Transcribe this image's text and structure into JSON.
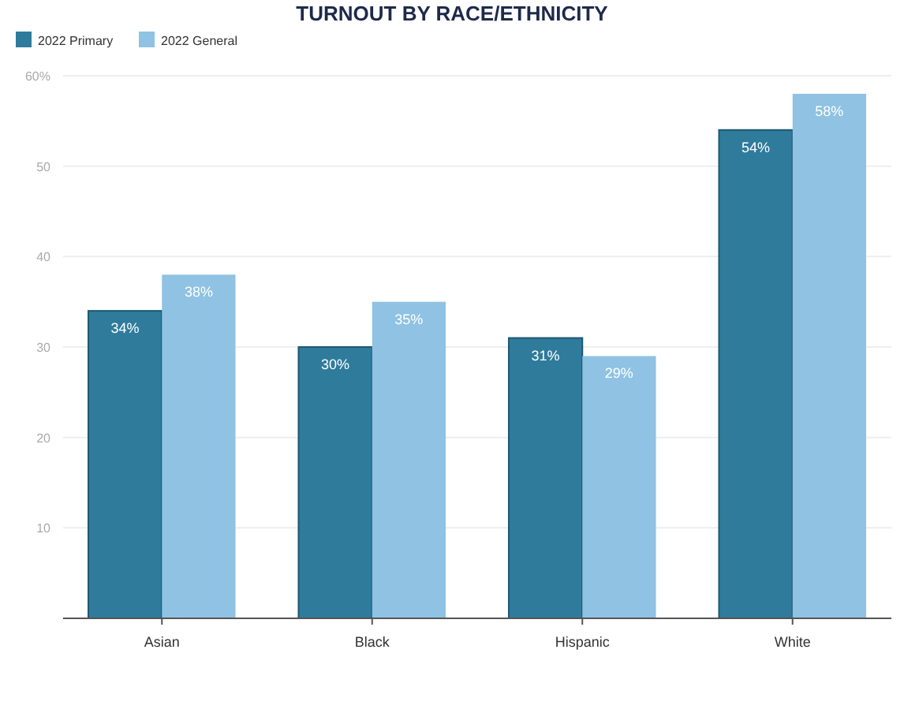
{
  "chart_data": {
    "type": "bar",
    "title": "TURNOUT BY RACE/ETHNICITY",
    "categories": [
      "Asian",
      "Black",
      "Hispanic",
      "White"
    ],
    "series": [
      {
        "name": "2022 Primary",
        "color": "#2f7b9c",
        "values": [
          34,
          30,
          31,
          54
        ],
        "value_labels": [
          "34%",
          "30%",
          "31%",
          "54%"
        ]
      },
      {
        "name": "2022 General",
        "color": "#8fc2e3",
        "values": [
          38,
          35,
          29,
          58
        ],
        "value_labels": [
          "38%",
          "35%",
          "29%",
          "58%"
        ]
      }
    ],
    "ylim": [
      0,
      60
    ],
    "yticks": [
      10,
      20,
      30,
      40,
      50,
      {
        "value": 60,
        "label": "60%"
      }
    ],
    "grid": "y",
    "legend": "top left"
  }
}
